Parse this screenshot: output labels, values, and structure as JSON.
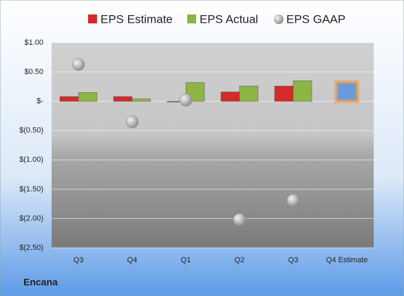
{
  "chart_data": {
    "type": "bar",
    "title": "Encana",
    "categories": [
      "Q3",
      "Q4",
      "Q1",
      "Q2",
      "Q3",
      "Q4 Estimate"
    ],
    "series": [
      {
        "name": "EPS Estimate",
        "color": "#d42a2a",
        "values": [
          0.08,
          0.08,
          -0.01,
          0.16,
          0.26,
          0.33
        ]
      },
      {
        "name": "EPS Actual",
        "color": "#8cb545",
        "values": [
          0.15,
          0.04,
          0.32,
          0.26,
          0.35,
          null
        ]
      },
      {
        "name": "EPS GAAP",
        "color": "#b8b8b8",
        "type": "scatter",
        "values": [
          0.63,
          -0.35,
          0.02,
          -2.02,
          -1.69,
          null
        ]
      }
    ],
    "estimate_color": "#6a9bd8",
    "ylim": [
      -2.5,
      1
    ],
    "yticks": [
      {
        "value": 1,
        "label": "$1.00"
      },
      {
        "value": 0.5,
        "label": "$0.50"
      },
      {
        "value": 0,
        "label": "$-"
      },
      {
        "value": -0.5,
        "label": "$(0.50)"
      },
      {
        "value": -1,
        "label": "$(1.00)"
      },
      {
        "value": -1.5,
        "label": "$(1.50)"
      },
      {
        "value": -2,
        "label": "$(2.00)"
      },
      {
        "value": -2.5,
        "label": "$(2.50)"
      }
    ],
    "grid": true
  }
}
